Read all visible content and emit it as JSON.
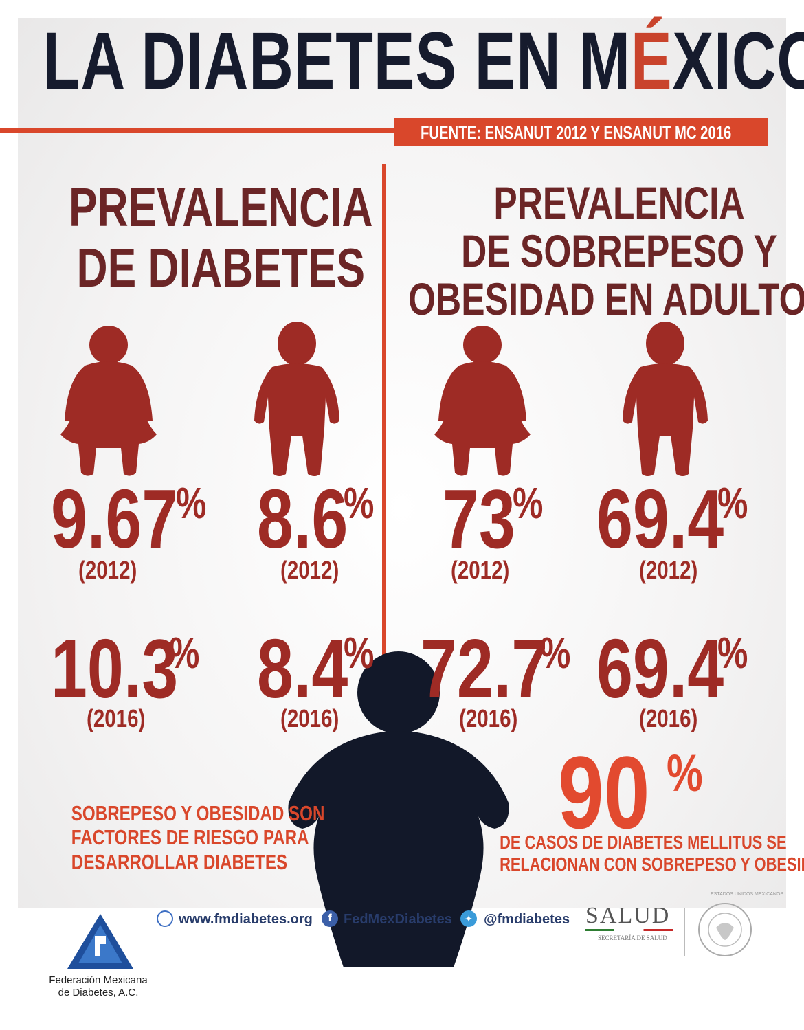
{
  "title": {
    "part1": "LA DIABETES EN M",
    "accent_letter": "É",
    "part2": "XICO"
  },
  "source": "FUENTE: ENSANUT 2012 Y ENSANUT MC 2016",
  "left_section": {
    "heading_line1": "PREVALENCIA",
    "heading_line2": "DE DIABETES",
    "stats": [
      {
        "value": "9.67",
        "unit": "%",
        "year": "(2012)"
      },
      {
        "value": "8.6",
        "unit": "%",
        "year": "(2012)"
      },
      {
        "value": "10.3",
        "unit": "%",
        "year": "(2016)"
      },
      {
        "value": "8.4",
        "unit": "%",
        "year": "(2016)"
      }
    ]
  },
  "right_section": {
    "heading_line1": "PREVALENCIA",
    "heading_line2": "DE SOBREPESO Y",
    "heading_line3": "OBESIDAD EN ADULTOS",
    "stats": [
      {
        "value": "73",
        "unit": "%",
        "year": "(2012)"
      },
      {
        "value": "69.4",
        "unit": "%",
        "year": "(2012)"
      },
      {
        "value": "72.7",
        "unit": "%",
        "year": "(2016)"
      },
      {
        "value": "69.4",
        "unit": "%",
        "year": "(2016)"
      }
    ]
  },
  "left_note": {
    "line1": "SOBREPESO Y OBESIDAD SON",
    "line2": "FACTORES DE RIESGO PARA",
    "line3": "DESARROLLAR DIABETES"
  },
  "highlight": {
    "value": "90",
    "unit": "%",
    "line1": "DE CASOS DE DIABETES MELLITUS SE",
    "line2": "RELACIONAN CON SOBREPESO Y OBESIDAD"
  },
  "footer": {
    "org_line1": "Federación Mexicana",
    "org_line2": "de Diabetes, A.C.",
    "website": "www.fmdiabetes.org",
    "facebook": "FedMexDiabetes",
    "twitter": "@fmdiabetes",
    "salud": "SALUD",
    "salud_sub": "SECRETARÍA DE SALUD",
    "seal_text": "ESTADOS UNIDOS MEXICANOS"
  },
  "colors": {
    "accent": "#d9472b",
    "maroon": "#6b2526",
    "stat_red": "#9e2b25",
    "navy": "#161b2d"
  },
  "icons": [
    "woman-icon",
    "man-icon",
    "obese-person-icon",
    "globe-icon",
    "facebook-icon",
    "twitter-icon",
    "fmd-logo",
    "mexico-seal"
  ]
}
